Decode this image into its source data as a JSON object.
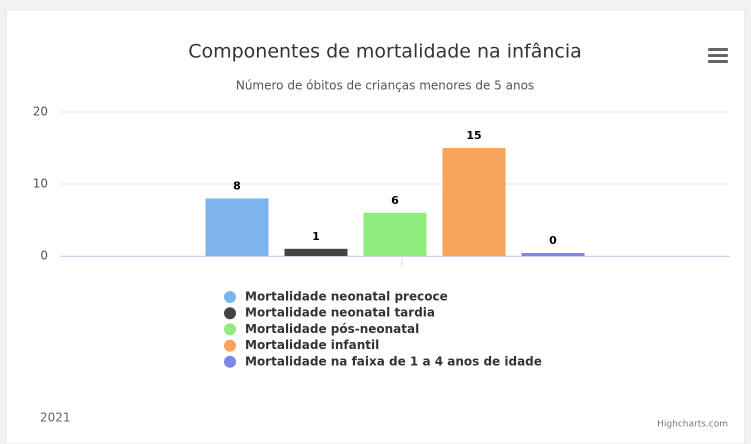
{
  "chart_data": {
    "type": "bar",
    "title": "Componentes de mortalidade na infância",
    "subtitle": "Número de óbitos de crianças menores de 5 anos",
    "categories": [
      "2021"
    ],
    "series": [
      {
        "name": "Mortalidade neonatal precoce",
        "color": "#7cb5ec",
        "values": [
          8
        ]
      },
      {
        "name": "Mortalidade neonatal tardia",
        "color": "#434348",
        "values": [
          1
        ]
      },
      {
        "name": "Mortalidade pós-neonatal",
        "color": "#90ed7d",
        "values": [
          6
        ]
      },
      {
        "name": "Mortalidade infantil",
        "color": "#f7a35c",
        "values": [
          15
        ]
      },
      {
        "name": "Mortalidade na faixa de 1 a 4 anos de idade",
        "color": "#8085e9",
        "values": [
          0
        ]
      }
    ],
    "ylim": [
      0,
      20
    ],
    "yticks": [
      0,
      10,
      20
    ],
    "grid": true,
    "legend": "bottom",
    "credits": "Highcharts.com"
  }
}
